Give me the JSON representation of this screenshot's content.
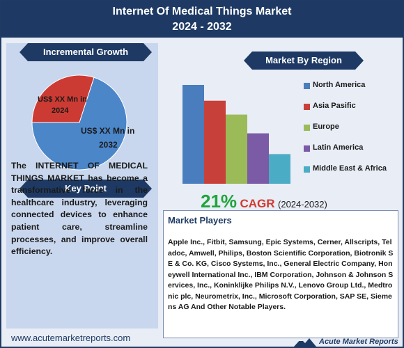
{
  "header": {
    "title_line1": "Internet Of Medical Things Market",
    "title_line2": "2024 - 2032"
  },
  "incremental": {
    "heading": "Incremental Growth",
    "slice_2024_label_a": "US$ XX Mn in",
    "slice_2024_label_b": "2024",
    "slice_2032_label_a": "US$ XX Mn in",
    "slice_2032_label_b": "2032"
  },
  "key_point": {
    "heading": "Key Point",
    "text": "The INTERNET OF MEDICAL THINGS MARKET has become a transformative force in the healthcare industry, leveraging connected devices to enhance patient care, streamline processes, and improve overall efficiency."
  },
  "region": {
    "heading": "Market By Region"
  },
  "cagr": {
    "value": "21%",
    "label": "CAGR",
    "period": "(2024-2032)"
  },
  "players": {
    "heading": "Market Players",
    "text": "Apple Inc., Fitbit, Samsung, Epic Systems, Cerner, Allscripts, Teladoc, Amwell, Philips, Boston Scientific Corporation, Biotronik SE & Co. KG, Cisco Systems, Inc., General Electric Company, Honeywell International Inc., IBM Corporation, Johnson & Johnson Services, Inc., Koninklijke Philips N.V., Lenovo Group Ltd., Medtronic plc, Neurometrix, Inc., Microsoft Corporation, SAP SE, Siemens AG And Other Notable Players."
  },
  "footer": {
    "url": "www.acutemarketreports.com",
    "logo_text": "Acute Market Reports"
  },
  "colors": {
    "navy": "#1e3a64",
    "green": "#1fa53a",
    "red": "#d23a2e"
  },
  "chart_data": [
    {
      "type": "pie",
      "categories": [
        "2024",
        "2032"
      ],
      "values": [
        30,
        70
      ],
      "colors": [
        "#cc3b33",
        "#4b86c9"
      ]
    },
    {
      "type": "bar",
      "categories": [
        "North America",
        "Asia Pasific",
        "Europe",
        "Latin America",
        "Middle East & Africa"
      ],
      "values": [
        100,
        84,
        70,
        51,
        30
      ],
      "colors": [
        "#4a7dbd",
        "#c8403a",
        "#9bbb59",
        "#7b5aa6",
        "#4bacc6"
      ],
      "legend": "right",
      "grid": false
    }
  ]
}
